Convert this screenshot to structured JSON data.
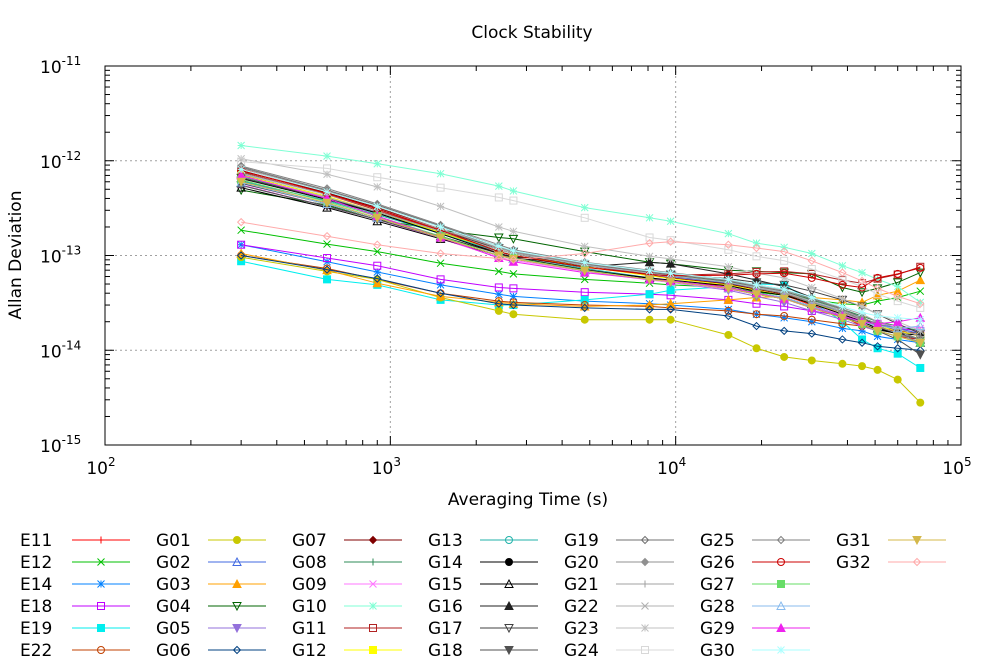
{
  "chart_data": {
    "type": "line",
    "title": "Clock Stability",
    "xlabel": "Averaging Time (s)",
    "ylabel": "Allan Deviation",
    "xscale": "log",
    "yscale": "log",
    "xlim": [
      100,
      100000
    ],
    "ylim": [
      1e-15,
      1e-11
    ],
    "grid": true,
    "legend_placement": "bottom",
    "x_ticks": [
      {
        "base": "10",
        "exp": "2"
      },
      {
        "base": "10",
        "exp": "3"
      },
      {
        "base": "10",
        "exp": "4"
      },
      {
        "base": "10",
        "exp": "5"
      }
    ],
    "y_ticks": [
      {
        "base": "10",
        "exp": "-15"
      },
      {
        "base": "10",
        "exp": "-14"
      },
      {
        "base": "10",
        "exp": "-13"
      },
      {
        "base": "10",
        "exp": "-12"
      },
      {
        "base": "10",
        "exp": "-11"
      }
    ],
    "x": [
      300,
      600,
      900,
      1500,
      2400,
      2700,
      4800,
      8100,
      9600,
      15300,
      19200,
      24000,
      30000,
      38400,
      45000,
      51000,
      60000,
      72000
    ],
    "series": [
      {
        "name": "E11",
        "color": "#ff0000",
        "marker": "plus",
        "values": [
          8.2e-13,
          4.6e-13,
          3.1e-13,
          1.8e-13,
          1.05e-13,
          9.2e-14,
          7.1e-14,
          5.6e-14,
          5.2e-14,
          4.8e-14,
          4.2e-14,
          3.8e-14,
          3e-14,
          2.3e-14,
          1.8e-14,
          1.6e-14,
          1.4e-14,
          1.3e-14
        ]
      },
      {
        "name": "E12",
        "color": "#00c000",
        "marker": "x",
        "values": [
          1.85e-13,
          1.32e-13,
          1.1e-13,
          8.3e-14,
          6.8e-14,
          6.4e-14,
          5.6e-14,
          5.1e-14,
          4.9e-14,
          4.6e-14,
          4.1e-14,
          3.8e-14,
          3.4e-14,
          3.1e-14,
          3e-14,
          3.3e-14,
          3.6e-14,
          4.2e-14
        ]
      },
      {
        "name": "E14",
        "color": "#0080ff",
        "marker": "star",
        "values": [
          1.3e-13,
          8.6e-14,
          6.7e-14,
          4.9e-14,
          3.9e-14,
          3.7e-14,
          3.3e-14,
          3.1e-14,
          3e-14,
          2.7e-14,
          2.4e-14,
          2.2e-14,
          2e-14,
          1.7e-14,
          1.6e-14,
          1.4e-14,
          1.3e-14,
          1.2e-14
        ]
      },
      {
        "name": "E18",
        "color": "#c000ff",
        "marker": "open-square",
        "values": [
          1.3e-13,
          9.4e-14,
          7.8e-14,
          5.6e-14,
          4.6e-14,
          4.5e-14,
          4.1e-14,
          3.9e-14,
          3.8e-14,
          3.4e-14,
          3.1e-14,
          2.9e-14,
          2.6e-14,
          2.3e-14,
          2.1e-14,
          1.9e-14,
          1.7e-14,
          1.6e-14
        ]
      },
      {
        "name": "E19",
        "color": "#00eeee",
        "marker": "filled-square",
        "values": [
          8.7e-14,
          5.6e-14,
          4.9e-14,
          3.4e-14,
          3e-14,
          3e-14,
          3.4e-14,
          3.9e-14,
          4.3e-14,
          4.7e-14,
          5e-14,
          4.9e-14,
          3.3e-14,
          2e-14,
          1.3e-14,
          1.05e-14,
          9.2e-15,
          6.5e-15
        ]
      },
      {
        "name": "E22",
        "color": "#c04000",
        "marker": "open-circle",
        "values": [
          1e-13,
          7.3e-14,
          5.6e-14,
          4e-14,
          3.3e-14,
          3.2e-14,
          3e-14,
          2.9e-14,
          2.8e-14,
          2.6e-14,
          2.4e-14,
          2.3e-14,
          2.1e-14,
          1.9e-14,
          1.8e-14,
          1.7e-14,
          1.6e-14,
          1.5e-14
        ]
      },
      {
        "name": "G01",
        "color": "#c8c800",
        "marker": "filled-circle",
        "values": [
          9.6e-14,
          6.8e-14,
          5.6e-14,
          3.6e-14,
          2.6e-14,
          2.4e-14,
          2.1e-14,
          2.1e-14,
          2.1e-14,
          1.45e-14,
          1.05e-14,
          8.5e-15,
          7.8e-15,
          7.2e-15,
          6.8e-15,
          6.2e-15,
          4.9e-15,
          2.8e-15
        ]
      },
      {
        "name": "G02",
        "color": "#4169e1",
        "marker": "open-triangle",
        "values": [
          7.2e-13,
          4.2e-13,
          2.8e-13,
          1.7e-13,
          1.1e-13,
          1e-13,
          7.9e-14,
          6.4e-14,
          6e-14,
          5.1e-14,
          4.5e-14,
          4e-14,
          3.2e-14,
          2.6e-14,
          2.2e-14,
          1.9e-14,
          1.7e-14,
          1.5e-14
        ]
      },
      {
        "name": "G03",
        "color": "#ffa000",
        "marker": "filled-triangle",
        "values": [
          1.05e-13,
          7e-14,
          5.1e-14,
          3.7e-14,
          3.2e-14,
          3.1e-14,
          2.9e-14,
          3e-14,
          3.1e-14,
          3.4e-14,
          3.6e-14,
          3.7e-14,
          3.6e-14,
          3.4e-14,
          3.2e-14,
          3.8e-14,
          4.2e-14,
          5.5e-14
        ]
      },
      {
        "name": "G04",
        "color": "#006400",
        "marker": "open-inv-triangle",
        "values": [
          4.9e-13,
          3.4e-13,
          2.4e-13,
          1.85e-13,
          1.55e-13,
          1.5e-13,
          1.1e-13,
          8.5e-14,
          8.2e-14,
          7e-14,
          6.8e-14,
          6.6e-14,
          6.4e-14,
          4.6e-14,
          4.1e-14,
          4.5e-14,
          5.2e-14,
          6.6e-14
        ]
      },
      {
        "name": "G05",
        "color": "#9370db",
        "marker": "filled-inv-triangle",
        "values": [
          6.2e-13,
          3.5e-13,
          2.5e-13,
          1.55e-13,
          1e-13,
          9.2e-14,
          7e-14,
          5.6e-14,
          5.2e-14,
          4.3e-14,
          3.7e-14,
          3.2e-14,
          2.6e-14,
          2.1e-14,
          1.8e-14,
          1.6e-14,
          1.4e-14,
          1.2e-14
        ]
      },
      {
        "name": "G06",
        "color": "#004080",
        "marker": "open-diamond",
        "values": [
          1e-13,
          7.1e-14,
          5.7e-14,
          4e-14,
          3.1e-14,
          3e-14,
          2.8e-14,
          2.7e-14,
          2.7e-14,
          2.3e-14,
          1.8e-14,
          1.6e-14,
          1.5e-14,
          1.3e-14,
          1.2e-14,
          1.1e-14,
          1.05e-14,
          1e-14
        ]
      },
      {
        "name": "G07",
        "color": "#800000",
        "marker": "filled-diamond",
        "values": [
          7.8e-13,
          4.6e-13,
          3.2e-13,
          1.9e-13,
          1.15e-13,
          1.05e-13,
          7.6e-14,
          6.2e-14,
          5.8e-14,
          5e-14,
          4.4e-14,
          3.9e-14,
          3.1e-14,
          2.4e-14,
          2e-14,
          1.7e-14,
          1.5e-14,
          1.3e-14
        ]
      },
      {
        "name": "G08",
        "color": "#2e8b57",
        "marker": "plus",
        "values": [
          6.8e-13,
          4e-13,
          2.8e-13,
          1.75e-13,
          1.15e-13,
          1.05e-13,
          8e-14,
          6.6e-14,
          6.2e-14,
          5.3e-14,
          4.7e-14,
          4.2e-14,
          3.4e-14,
          2.7e-14,
          2.3e-14,
          2e-14,
          1.8e-14,
          1.6e-14
        ]
      },
      {
        "name": "G09",
        "color": "#ff77ff",
        "marker": "x",
        "values": [
          5.6e-13,
          3.3e-13,
          2.4e-13,
          1.5e-13,
          9.6e-14,
          8.9e-14,
          6.8e-14,
          5.5e-14,
          5.2e-14,
          4.4e-14,
          3.9e-14,
          3.5e-14,
          2.9e-14,
          2.4e-14,
          2.1e-14,
          1.9e-14,
          1.8e-14,
          1.7e-14
        ]
      },
      {
        "name": "G10",
        "color": "#7fffd4",
        "marker": "star",
        "values": [
          1.45e-12,
          1.12e-12,
          9.3e-13,
          7.3e-13,
          5.4e-13,
          4.8e-13,
          3.2e-13,
          2.5e-13,
          2.3e-13,
          1.7e-13,
          1.35e-13,
          1.22e-13,
          1.05e-13,
          7.8e-14,
          6.6e-14,
          5.6e-14,
          4.7e-14,
          3.2e-14
        ]
      },
      {
        "name": "G11",
        "color": "#b22222",
        "marker": "open-square",
        "values": [
          7.6e-13,
          4.4e-13,
          3e-13,
          1.8e-13,
          1.1e-13,
          1e-13,
          7.6e-14,
          6.4e-14,
          6.2e-14,
          6.4e-14,
          6.7e-14,
          6.8e-14,
          6.4e-14,
          5.5e-14,
          5.1e-14,
          5.7e-14,
          6.3e-14,
          7.6e-14
        ]
      },
      {
        "name": "G12",
        "color": "#ffff00",
        "marker": "filled-square",
        "values": [
          7.1e-13,
          4.2e-13,
          2.9e-13,
          1.75e-13,
          1.1e-13,
          1e-13,
          7.6e-14,
          6.1e-14,
          5.7e-14,
          4.9e-14,
          4.3e-14,
          3.8e-14,
          3.1e-14,
          2.5e-14,
          2.1e-14,
          1.8e-14,
          1.6e-14,
          1.4e-14
        ]
      },
      {
        "name": "G13",
        "color": "#20b2aa",
        "marker": "open-circle",
        "values": [
          6.1e-13,
          3.8e-13,
          2.7e-13,
          1.7e-13,
          1.1e-13,
          1e-13,
          7.3e-14,
          5.8e-14,
          5.4e-14,
          4.6e-14,
          4e-14,
          3.6e-14,
          2.9e-14,
          2.3e-14,
          2e-14,
          1.7e-14,
          1.5e-14,
          1.3e-14
        ]
      },
      {
        "name": "G14",
        "color": "#000000",
        "marker": "filled-circle",
        "values": [
          6.5e-13,
          3.9e-13,
          2.8e-13,
          1.7e-13,
          1.05e-13,
          9.6e-14,
          7.1e-14,
          5.7e-14,
          5.3e-14,
          4.5e-14,
          3.9e-14,
          3.5e-14,
          2.8e-14,
          2.2e-14,
          1.9e-14,
          1.65e-14,
          1.5e-14,
          1.45e-14
        ]
      },
      {
        "name": "G15",
        "color": "#000000",
        "marker": "open-triangle",
        "values": [
          5.2e-13,
          3.2e-13,
          2.3e-13,
          1.5e-13,
          1e-13,
          9.3e-14,
          7e-14,
          5.8e-14,
          5.5e-14,
          4.8e-14,
          4.2e-14,
          3.8e-14,
          3.1e-14,
          2.4e-14,
          2e-14,
          1.7e-14,
          1.5e-14,
          1.3e-14
        ]
      },
      {
        "name": "G16",
        "color": "#202020",
        "marker": "filled-triangle",
        "values": [
          5.8e-13,
          3.5e-13,
          2.5e-13,
          1.6e-13,
          1.05e-13,
          9.7e-14,
          7.6e-14,
          8.5e-14,
          8.2e-14,
          6.4e-14,
          5.5e-14,
          4.7e-14,
          3.6e-14,
          2.7e-14,
          2.2e-14,
          1.8e-14,
          1.5e-14,
          1.2e-14
        ]
      },
      {
        "name": "G17",
        "color": "#404040",
        "marker": "open-inv-triangle",
        "values": [
          6.6e-13,
          4e-13,
          2.9e-13,
          1.8e-13,
          1.2e-13,
          1.1e-13,
          8e-14,
          6.6e-14,
          6.3e-14,
          5.7e-14,
          5.2e-14,
          4.9e-14,
          4.2e-14,
          3.4e-14,
          2.9e-14,
          2.4e-14,
          1.9e-14,
          1.5e-14
        ]
      },
      {
        "name": "G18",
        "color": "#505050",
        "marker": "filled-inv-triangle",
        "values": [
          5.5e-13,
          3.3e-13,
          2.4e-13,
          1.55e-13,
          1e-13,
          9.2e-14,
          6.9e-14,
          5.6e-14,
          5.3e-14,
          4.6e-14,
          4e-14,
          3.6e-14,
          2.9e-14,
          2.3e-14,
          1.9e-14,
          1.6e-14,
          1.3e-14,
          9e-15
        ]
      },
      {
        "name": "G19",
        "color": "#707070",
        "marker": "open-diamond",
        "values": [
          8.6e-13,
          4.9e-13,
          3.4e-13,
          2.05e-13,
          1.25e-13,
          1.1e-13,
          8.2e-14,
          6.7e-14,
          6.3e-14,
          5.4e-14,
          4.7e-14,
          4.2e-14,
          3.3e-14,
          2.6e-14,
          2.1e-14,
          1.8e-14,
          1.5e-14,
          1.3e-14
        ]
      },
      {
        "name": "G20",
        "color": "#909090",
        "marker": "filled-diamond",
        "values": [
          8.4e-13,
          4.8e-13,
          3.3e-13,
          2e-13,
          1.2e-13,
          1.08e-13,
          8e-14,
          6.5e-14,
          6.1e-14,
          5.2e-14,
          4.5e-14,
          4e-14,
          3.2e-14,
          2.5e-14,
          2.1e-14,
          1.8e-14,
          1.5e-14,
          1.2e-14
        ]
      },
      {
        "name": "G21",
        "color": "#a0a0a0",
        "marker": "plus",
        "values": [
          7.4e-13,
          4.4e-13,
          3.1e-13,
          1.9e-13,
          1.2e-13,
          1.1e-13,
          8.3e-14,
          6.8e-14,
          6.4e-14,
          5.5e-14,
          4.8e-14,
          4.3e-14,
          3.5e-14,
          2.8e-14,
          2.4e-14,
          2e-14,
          1.7e-14,
          1.4e-14
        ]
      },
      {
        "name": "G22",
        "color": "#b0b0b0",
        "marker": "x",
        "values": [
          6.9e-13,
          4.1e-13,
          2.9e-13,
          1.8e-13,
          1.15e-13,
          1.05e-13,
          7.9e-14,
          6.5e-14,
          6.1e-14,
          5.2e-14,
          4.6e-14,
          4.1e-14,
          3.3e-14,
          2.6e-14,
          2.2e-14,
          1.9e-14,
          1.6e-14,
          1.3e-14
        ]
      },
      {
        "name": "G23",
        "color": "#c0c0c0",
        "marker": "star",
        "values": [
          1.05e-12,
          7.2e-13,
          5.3e-13,
          3.3e-13,
          2e-13,
          1.8e-13,
          1.25e-13,
          9.8e-14,
          9.2e-14,
          7.6e-14,
          6.5e-14,
          5.8e-14,
          4.6e-14,
          3.5e-14,
          2.9e-14,
          2.4e-14,
          2e-14,
          1.6e-14
        ]
      },
      {
        "name": "G24",
        "color": "#d8d8d8",
        "marker": "open-square",
        "values": [
          9.8e-13,
          8.3e-13,
          6.7e-13,
          5.2e-13,
          4.1e-13,
          3.8e-13,
          2.5e-13,
          1.55e-13,
          1.45e-13,
          1.15e-13,
          9.8e-14,
          8.8e-14,
          7.2e-14,
          5.6e-14,
          4.7e-14,
          3.9e-14,
          3.3e-14,
          2.8e-14
        ]
      },
      {
        "name": "G25",
        "color": "#808080",
        "marker": "open-diamond",
        "values": [
          8.8e-13,
          5.1e-13,
          3.5e-13,
          2.1e-13,
          1.3e-13,
          1.15e-13,
          8.5e-14,
          7e-14,
          6.6e-14,
          5.6e-14,
          4.9e-14,
          4.4e-14,
          3.5e-14,
          2.7e-14,
          2.2e-14,
          1.9e-14,
          1.6e-14,
          1.3e-14
        ]
      },
      {
        "name": "G26",
        "color": "#cc0000",
        "marker": "open-circle",
        "values": [
          7.9e-13,
          4.5e-13,
          3.1e-13,
          1.85e-13,
          1.1e-13,
          1e-13,
          7.5e-14,
          6.3e-14,
          6.1e-14,
          6.2e-14,
          6.4e-14,
          6.5e-14,
          5.8e-14,
          4.9e-14,
          4.6e-14,
          5.8e-14,
          6.4e-14,
          7.4e-14
        ]
      },
      {
        "name": "G27",
        "color": "#66dd66",
        "marker": "filled-square",
        "values": [
          6.3e-13,
          3.7e-13,
          2.6e-13,
          1.6e-13,
          1e-13,
          9.4e-14,
          7e-14,
          5.6e-14,
          5.3e-14,
          4.5e-14,
          3.9e-14,
          3.5e-14,
          2.8e-14,
          2.2e-14,
          1.9e-14,
          1.6e-14,
          1.4e-14,
          1.2e-14
        ]
      },
      {
        "name": "G28",
        "color": "#88bbee",
        "marker": "open-triangle",
        "values": [
          5.9e-13,
          3.5e-13,
          2.5e-13,
          1.55e-13,
          1e-13,
          9.2e-14,
          6.9e-14,
          5.6e-14,
          5.3e-14,
          4.5e-14,
          4e-14,
          3.6e-14,
          2.9e-14,
          2.3e-14,
          2e-14,
          1.8e-14,
          1.7e-14,
          1.8e-14
        ]
      },
      {
        "name": "G29",
        "color": "#ee22ee",
        "marker": "filled-triangle",
        "values": [
          7e-13,
          4e-13,
          2.6e-13,
          1.55e-13,
          9.4e-14,
          8.6e-14,
          6.6e-14,
          5.6e-14,
          5.4e-14,
          4.6e-14,
          4e-14,
          3.5e-14,
          2.8e-14,
          2.3e-14,
          2e-14,
          1.9e-14,
          2e-14,
          2.2e-14
        ]
      },
      {
        "name": "G30",
        "color": "#aaffff",
        "marker": "star",
        "values": [
          8.1e-13,
          4.7e-13,
          3.3e-13,
          2e-13,
          1.25e-13,
          1.12e-13,
          8.4e-14,
          6.9e-14,
          6.5e-14,
          5.6e-14,
          4.9e-14,
          4.4e-14,
          3.6e-14,
          2.9e-14,
          2.5e-14,
          2.3e-14,
          2.2e-14,
          2.1e-14
        ]
      },
      {
        "name": "G31",
        "color": "#d4b84a",
        "marker": "filled-inv-triangle",
        "values": [
          6e-13,
          3.6e-13,
          2.5e-13,
          1.55e-13,
          1e-13,
          9.2e-14,
          6.9e-14,
          5.6e-14,
          5.3e-14,
          4.5e-14,
          3.9e-14,
          3.5e-14,
          2.8e-14,
          2.2e-14,
          1.9e-14,
          1.6e-14,
          1.4e-14,
          1.2e-14
        ]
      },
      {
        "name": "G32",
        "color": "#ffaaaa",
        "marker": "open-diamond",
        "values": [
          2.25e-13,
          1.6e-13,
          1.3e-13,
          1.05e-13,
          9.3e-14,
          9e-14,
          1.05e-13,
          1.35e-13,
          1.4e-13,
          1.3e-13,
          1.2e-13,
          1.1e-13,
          8.8e-14,
          6.6e-14,
          5.4e-14,
          4.5e-14,
          3.7e-14,
          3.1e-14
        ]
      }
    ]
  }
}
